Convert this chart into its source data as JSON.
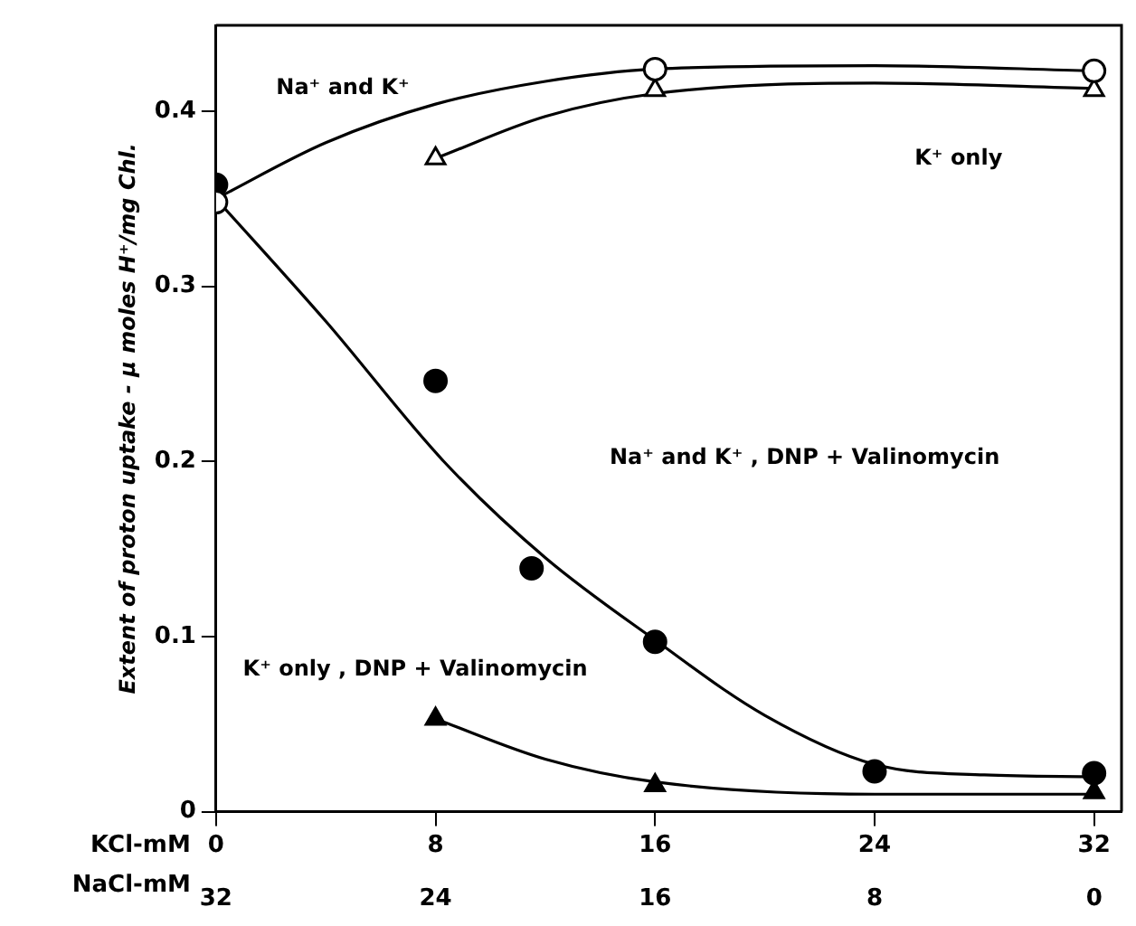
{
  "chart_data": {
    "type": "scatter",
    "ylabel": "Extent of proton uptake - μ moles H⁺/mg Chl.",
    "xlabel": "KCl-mM",
    "x2label": "NaCl-mM",
    "xlim": [
      0,
      33
    ],
    "xticks": [
      0,
      8,
      16,
      24,
      32
    ],
    "x2lim": [
      32,
      -1
    ],
    "x2ticks": [
      32,
      24,
      16,
      8,
      0
    ],
    "ylim": [
      0,
      0.449
    ],
    "yticks": [
      0,
      0.1,
      0.2,
      0.3,
      0.4
    ],
    "grid": false,
    "legend": false,
    "series": [
      {
        "marker": "circle",
        "color": "#ffffff",
        "x": [
          0,
          16,
          32
        ],
        "values": [
          0.348,
          0.424,
          0.423
        ]
      },
      {
        "marker": "triangle",
        "color": "#ffffff",
        "x": [
          8,
          16,
          32
        ],
        "values": [
          0.373,
          0.412,
          0.412
        ]
      },
      {
        "marker": "circle",
        "color": "#000000",
        "x": [
          0,
          8,
          11.5,
          16,
          24,
          32
        ],
        "values": [
          0.358,
          0.246,
          0.139,
          0.097,
          0.023,
          0.022
        ]
      },
      {
        "marker": "triangle",
        "color": "#000000",
        "x": [
          8,
          16,
          32
        ],
        "values": [
          0.053,
          0.015,
          0.011
        ]
      },
      {
        "type": "line",
        "marker": "none",
        "color": "#000000",
        "x": [
          0,
          4,
          8,
          12,
          16,
          24,
          32
        ],
        "values": [
          0.35,
          0.382,
          0.404,
          0.417,
          0.424,
          0.426,
          0.423
        ]
      },
      {
        "type": "line",
        "marker": "none",
        "color": "#000000",
        "x": [
          8,
          12,
          16,
          24,
          32
        ],
        "values": [
          0.373,
          0.397,
          0.41,
          0.416,
          0.413
        ]
      },
      {
        "type": "line",
        "marker": "none",
        "color": "#000000",
        "x": [
          0,
          4,
          8.3,
          12,
          16,
          20,
          24,
          28,
          32
        ],
        "values": [
          0.35,
          0.28,
          0.2,
          0.145,
          0.098,
          0.055,
          0.027,
          0.021,
          0.02
        ]
      },
      {
        "type": "line",
        "marker": "none",
        "color": "#000000",
        "x": [
          8,
          12,
          16,
          24,
          32
        ],
        "values": [
          0.053,
          0.03,
          0.017,
          0.01,
          0.01
        ]
      }
    ],
    "annotations": [
      "Na⁺ and K⁺",
      "K⁺ only",
      "Na⁺ and K⁺ , DNP + Valinomycin",
      "K⁺ only , DNP + Valinomycin"
    ]
  }
}
